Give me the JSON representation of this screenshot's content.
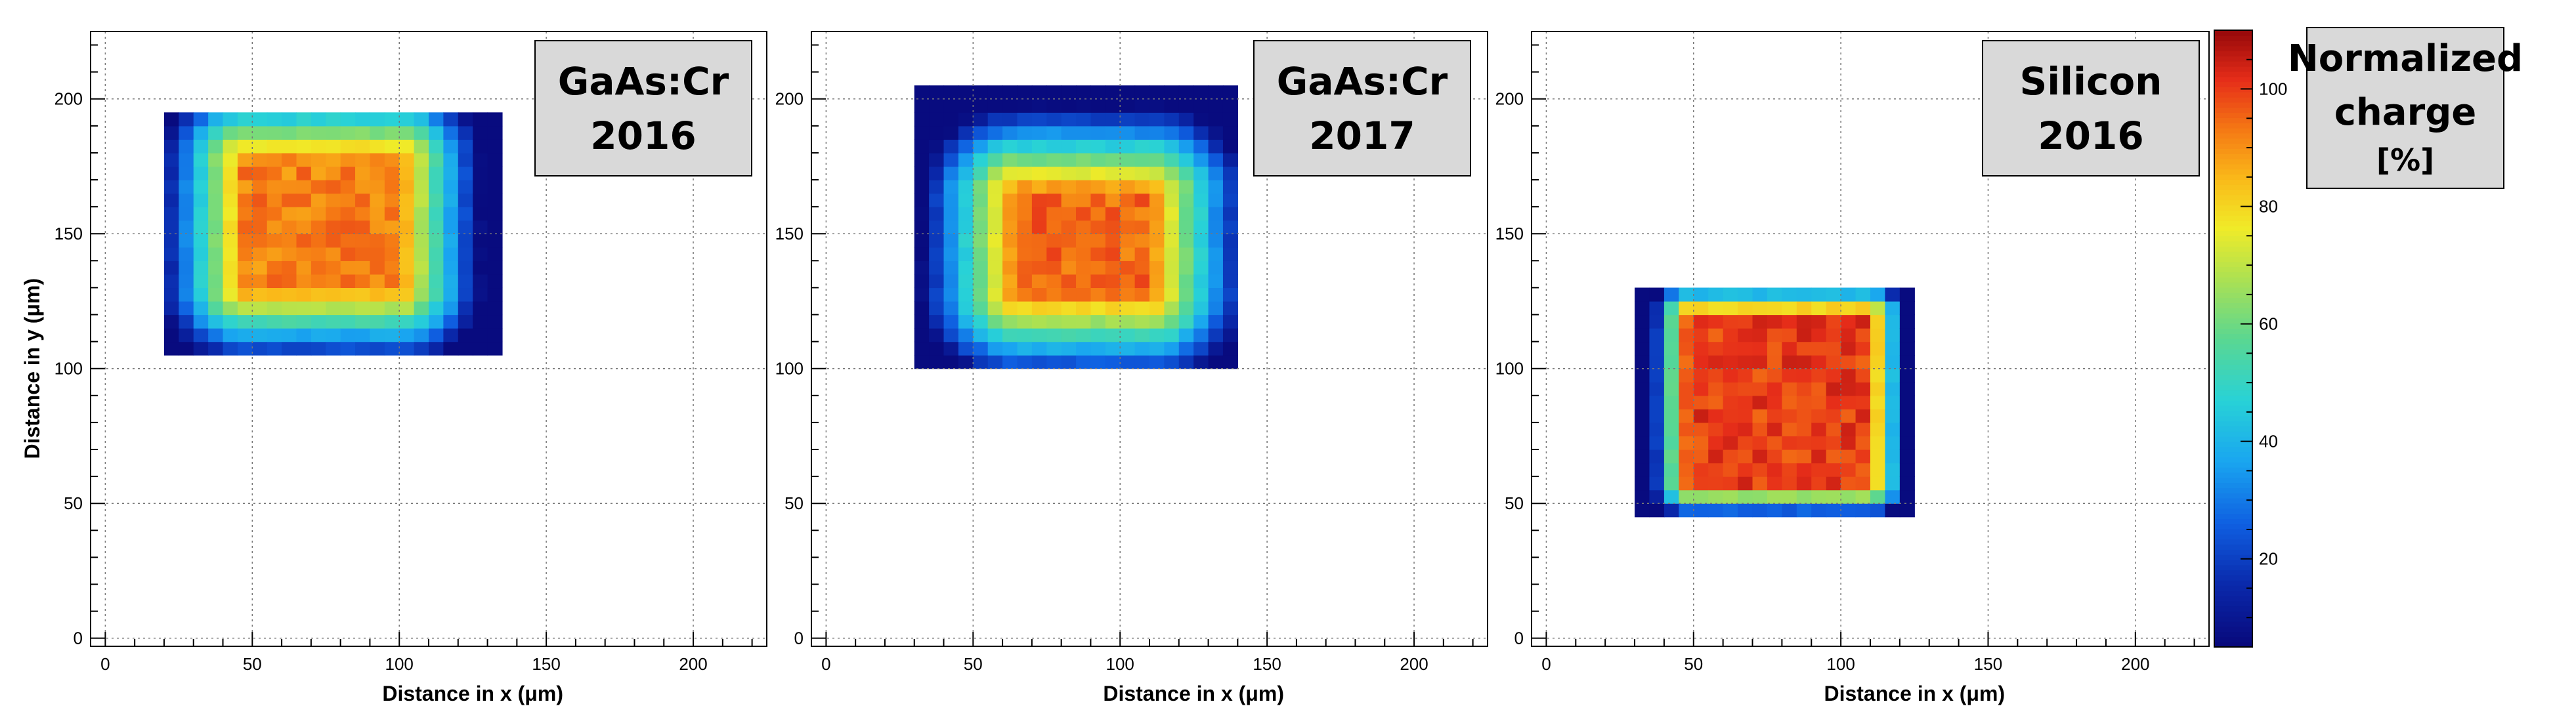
{
  "chart_data": {
    "type": "heatmap",
    "x_axis_label_prefix": "Distance in x (",
    "y_axis_label_prefix": "Distance in y (",
    "axis_unit": "μm",
    "axis_label_suffix": ")",
    "xlim": [
      -5,
      225
    ],
    "ylim": [
      -3,
      225
    ],
    "x_ticks": [
      0,
      50,
      100,
      150,
      200
    ],
    "y_ticks": [
      0,
      50,
      100,
      150,
      200
    ],
    "grid": true,
    "bin_size_um": 5,
    "colorbar": {
      "range": [
        5,
        110
      ],
      "ticks": [
        20,
        40,
        60,
        80,
        100
      ],
      "label_line1": "Normalized",
      "label_line2": "charge",
      "label_line3": "[%]"
    },
    "panels": [
      {
        "material": "GaAs:Cr",
        "year": "2016",
        "region": {
          "x_min": 20,
          "x_max": 135,
          "y_min": 105,
          "y_max": 195
        },
        "plateau": {
          "x_min": 47,
          "x_max": 100,
          "y_min": 130,
          "y_max": 178
        },
        "plateau_value": 92,
        "edge_falloff_um": 25
      },
      {
        "material": "GaAs:Cr",
        "year": "2017",
        "region": {
          "x_min": 30,
          "x_max": 140,
          "y_min": 100,
          "y_max": 205
        },
        "plateau": {
          "x_min": 65,
          "x_max": 110,
          "y_min": 128,
          "y_max": 165
        },
        "plateau_value": 95,
        "edge_falloff_um": 30
      },
      {
        "material": "Silicon",
        "year": "2016",
        "region": {
          "x_min": 30,
          "x_max": 125,
          "y_min": 45,
          "y_max": 130
        },
        "plateau": {
          "x_min": 48,
          "x_max": 110,
          "y_min": 57,
          "y_max": 120
        },
        "plateau_value": 100,
        "edge_falloff_um": 8
      }
    ]
  }
}
